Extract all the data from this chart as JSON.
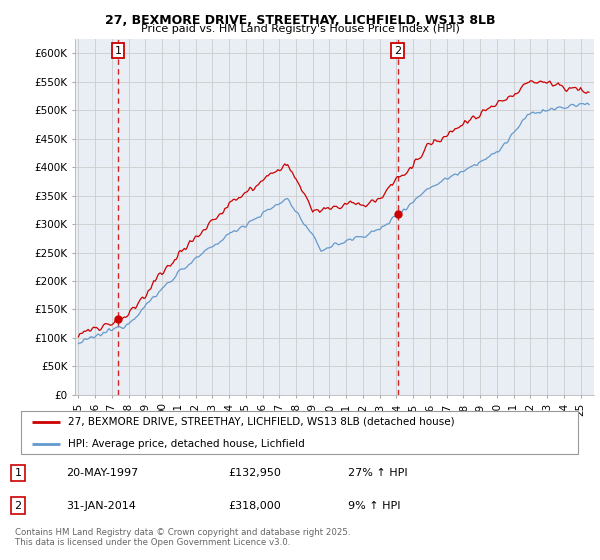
{
  "title_line1": "27, BEXMORE DRIVE, STREETHAY, LICHFIELD, WS13 8LB",
  "title_line2": "Price paid vs. HM Land Registry's House Price Index (HPI)",
  "legend_label1": "27, BEXMORE DRIVE, STREETHAY, LICHFIELD, WS13 8LB (detached house)",
  "legend_label2": "HPI: Average price, detached house, Lichfield",
  "annotation1_label": "1",
  "annotation1_date": "20-MAY-1997",
  "annotation1_price": "£132,950",
  "annotation1_hpi": "27% ↑ HPI",
  "annotation2_label": "2",
  "annotation2_date": "31-JAN-2014",
  "annotation2_price": "£318,000",
  "annotation2_hpi": "9% ↑ HPI",
  "footer": "Contains HM Land Registry data © Crown copyright and database right 2025.\nThis data is licensed under the Open Government Licence v3.0.",
  "red_color": "#cc0000",
  "blue_color": "#6699cc",
  "chart_bg": "#e8eef4",
  "ylim": [
    0,
    625000
  ],
  "yticks": [
    0,
    50000,
    100000,
    150000,
    200000,
    250000,
    300000,
    350000,
    400000,
    450000,
    500000,
    550000,
    600000
  ],
  "ytick_labels": [
    "£0",
    "£50K",
    "£100K",
    "£150K",
    "£200K",
    "£250K",
    "£300K",
    "£350K",
    "£400K",
    "£450K",
    "£500K",
    "£550K",
    "£600K"
  ],
  "xtick_years": [
    1995,
    1996,
    1997,
    1998,
    1999,
    2000,
    2001,
    2002,
    2003,
    2004,
    2005,
    2006,
    2007,
    2008,
    2009,
    2010,
    2011,
    2012,
    2013,
    2014,
    2015,
    2016,
    2017,
    2018,
    2019,
    2020,
    2021,
    2022,
    2023,
    2024,
    2025
  ],
  "purchase1_year": 1997.38,
  "purchase1_value": 132950,
  "purchase2_year": 2014.08,
  "purchase2_value": 318000,
  "background_color": "#ffffff",
  "grid_color": "#cccccc"
}
